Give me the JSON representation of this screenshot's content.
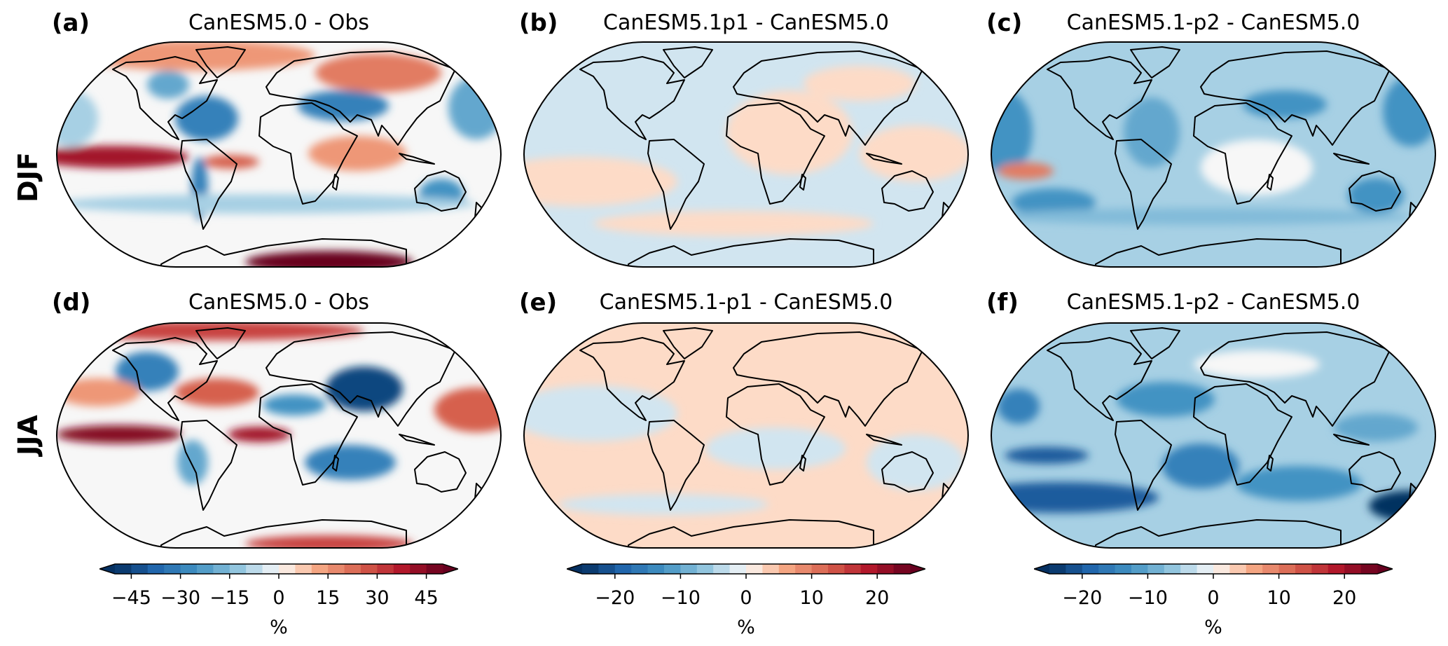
{
  "row_labels": [
    "DJF",
    "JJA"
  ],
  "panels": [
    {
      "label": "(a)",
      "title": "CanESM5.0 - Obs"
    },
    {
      "label": "(b)",
      "title": "CanESM5.1p1 - CanESM5.0"
    },
    {
      "label": "(c)",
      "title": "CanESM5.1-p2 - CanESM5.0"
    },
    {
      "label": "(d)",
      "title": "CanESM5.0 - Obs"
    },
    {
      "label": "(e)",
      "title": "CanESM5.1-p1 - CanESM5.0"
    },
    {
      "label": "(f)",
      "title": "CanESM5.1-p2 - CanESM5.0"
    }
  ],
  "colorbars": [
    {
      "range": [
        -50,
        50
      ],
      "step": 5,
      "ticks": [
        "−45",
        "−30",
        "−15",
        "0",
        "15",
        "30",
        "45"
      ],
      "tick_values": [
        -45,
        -30,
        -15,
        0,
        15,
        30,
        45
      ],
      "unit": "%"
    },
    {
      "range": [
        -25,
        25
      ],
      "step": 2.5,
      "ticks": [
        "−20",
        "−10",
        "0",
        "10",
        "20"
      ],
      "tick_values": [
        -20,
        -10,
        0,
        10,
        20
      ],
      "unit": "%"
    },
    {
      "range": [
        -25,
        25
      ],
      "step": 2.5,
      "ticks": [
        "−20",
        "−10",
        "0",
        "10",
        "20"
      ],
      "tick_values": [
        -20,
        -10,
        0,
        10,
        20
      ],
      "unit": "%"
    }
  ],
  "colormap": [
    "#053061",
    "#2166ac",
    "#4393c3",
    "#92c5de",
    "#d1e5f0",
    "#f7f7f7",
    "#fddbc7",
    "#f4a582",
    "#d6604d",
    "#b2182b",
    "#67001f"
  ]
}
